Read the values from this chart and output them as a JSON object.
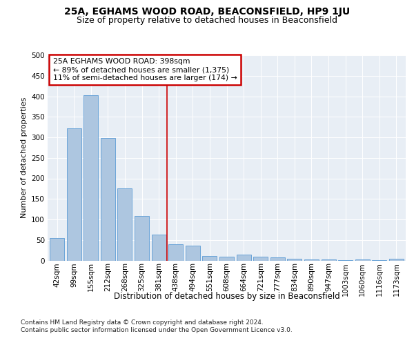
{
  "title": "25A, EGHAMS WOOD ROAD, BEACONSFIELD, HP9 1JU",
  "subtitle": "Size of property relative to detached houses in Beaconsfield",
  "xlabel": "Distribution of detached houses by size in Beaconsfield",
  "ylabel": "Number of detached properties",
  "categories": [
    "42sqm",
    "99sqm",
    "155sqm",
    "212sqm",
    "268sqm",
    "325sqm",
    "381sqm",
    "438sqm",
    "494sqm",
    "551sqm",
    "608sqm",
    "664sqm",
    "721sqm",
    "777sqm",
    "834sqm",
    "890sqm",
    "947sqm",
    "1003sqm",
    "1060sqm",
    "1116sqm",
    "1173sqm"
  ],
  "values": [
    54,
    322,
    403,
    299,
    175,
    108,
    63,
    40,
    36,
    11,
    10,
    15,
    9,
    7,
    4,
    2,
    2,
    1,
    2,
    1,
    5
  ],
  "bar_color": "#adc6e0",
  "bar_edge_color": "#5b9bd5",
  "vline_x": 6.5,
  "vline_color": "#cc0000",
  "annotation_text": "25A EGHAMS WOOD ROAD: 398sqm\n← 89% of detached houses are smaller (1,375)\n11% of semi-detached houses are larger (174) →",
  "annotation_box_color": "#cc0000",
  "footer1": "Contains HM Land Registry data © Crown copyright and database right 2024.",
  "footer2": "Contains public sector information licensed under the Open Government Licence v3.0.",
  "plot_bg_color": "#e8eef5",
  "ylim": [
    0,
    500
  ],
  "yticks": [
    0,
    50,
    100,
    150,
    200,
    250,
    300,
    350,
    400,
    450,
    500
  ],
  "title_fontsize": 10,
  "subtitle_fontsize": 9,
  "xlabel_fontsize": 8.5,
  "ylabel_fontsize": 8,
  "tick_fontsize": 7.5,
  "footer_fontsize": 6.5
}
